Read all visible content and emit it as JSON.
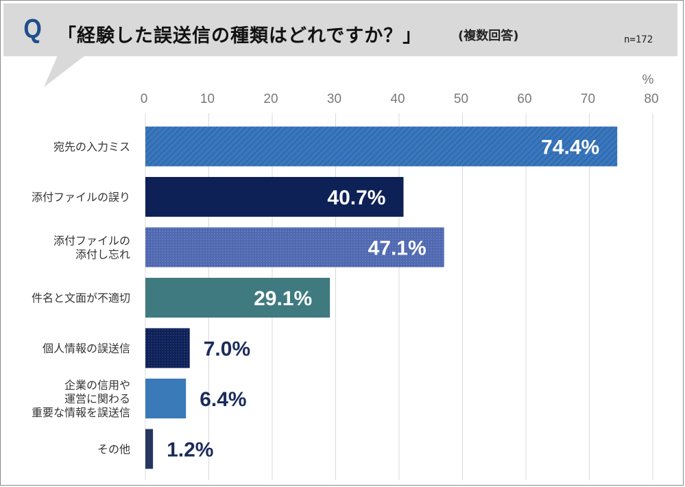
{
  "header": {
    "q_letter": "Q",
    "question": "「経験した誤送信の種類はどれですか？」",
    "note": "(複数回答)",
    "sample": "n=172"
  },
  "chart_data": {
    "type": "bar",
    "orientation": "horizontal",
    "title": "「経験した誤送信の種類はどれですか？」",
    "unit_label": "%",
    "xlim": [
      0,
      80
    ],
    "x_ticks": [
      0,
      10,
      20,
      30,
      40,
      50,
      60,
      70,
      80
    ],
    "grid": true,
    "categories": [
      [
        "宛先の入力ミス"
      ],
      [
        "添付ファイルの誤り"
      ],
      [
        "添付ファイルの",
        "添付し忘れ"
      ],
      [
        "件名と文面が不適切"
      ],
      [
        "個人情報の誤送信"
      ],
      [
        "企業の信用や",
        "運営に関わる",
        "重要な情報を誤送信"
      ],
      [
        "その他"
      ]
    ],
    "values": [
      74.4,
      40.7,
      47.1,
      29.1,
      7.0,
      6.4,
      1.2
    ],
    "value_labels": [
      "74.4%",
      "40.7%",
      "47.1%",
      "29.1%",
      "7.0%",
      "6.4%",
      "1.2%"
    ],
    "bar_colors": [
      "#3a77bd",
      "#0e2157",
      "#4f68b0",
      "#3f7a80",
      "#0e2157",
      "#3a7ab8",
      "#253660"
    ],
    "bar_patterns": [
      "diagonal",
      "solid",
      "dots",
      "solid",
      "dots",
      "solid",
      "solid"
    ],
    "label_colors": [
      "#ffffff",
      "#ffffff",
      "#ffffff",
      "#ffffff",
      "#1a2b5c",
      "#1a2b5c",
      "#1a2b5c"
    ]
  }
}
